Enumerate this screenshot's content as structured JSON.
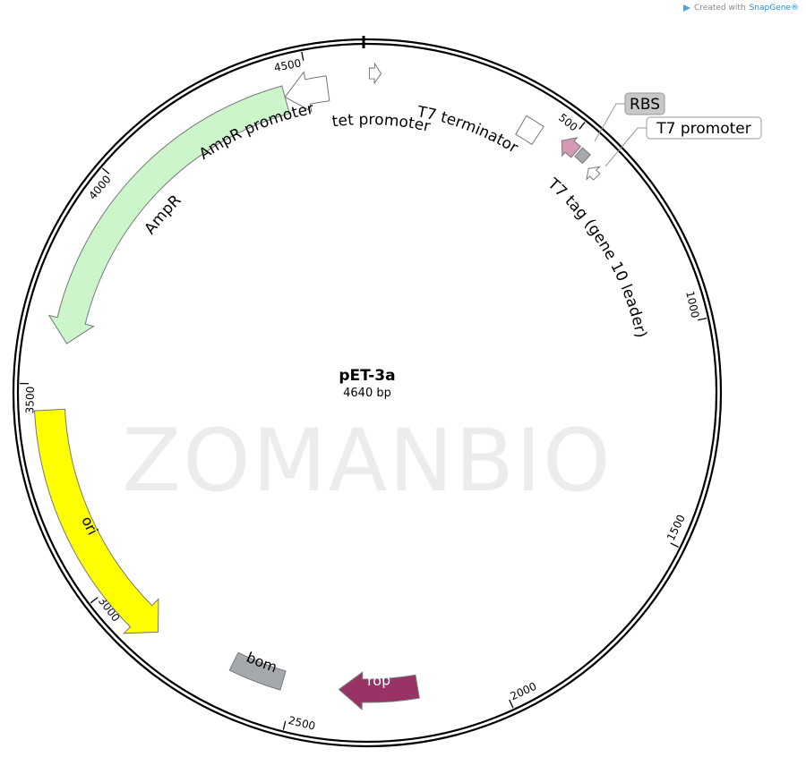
{
  "credit": {
    "prefix": "Created with ",
    "brand": "SnapGene®"
  },
  "watermark": "ZOMANBIO",
  "plasmid": {
    "name": "pET-3a",
    "length_label": "4640 bp",
    "length": 4640
  },
  "ticks": [
    {
      "bp": 500,
      "label": "500"
    },
    {
      "bp": 1000,
      "label": "1000"
    },
    {
      "bp": 1500,
      "label": "1500"
    },
    {
      "bp": 2000,
      "label": "2000"
    },
    {
      "bp": 2500,
      "label": "2500"
    },
    {
      "bp": 3000,
      "label": "3000"
    },
    {
      "bp": 3500,
      "label": "3500"
    },
    {
      "bp": 4000,
      "label": "4000"
    },
    {
      "bp": 4500,
      "label": "4500"
    }
  ],
  "features": [
    {
      "id": "ampr",
      "name": "AmpR",
      "start": 3600,
      "end": 4440,
      "direction": -1,
      "shape": "arrow",
      "color": "#ccf5cc"
    },
    {
      "id": "ampr-promoter",
      "name": "AmpR promoter",
      "start": 4440,
      "end": 4545,
      "direction": -1,
      "shape": "arrow",
      "color": "#ffffff"
    },
    {
      "id": "tet-promoter",
      "name": "tet promoter",
      "start": 5,
      "end": 32,
      "direction": 1,
      "shape": "arrow",
      "color": "#ffffff"
    },
    {
      "id": "t7-terminator",
      "name": "T7 terminator",
      "start": 385,
      "end": 432,
      "direction": 0,
      "shape": "box",
      "color": "#ffffff"
    },
    {
      "id": "t7-tag",
      "name": "T7 tag (gene 10 leader)",
      "start": 485,
      "end": 527,
      "direction": -1,
      "shape": "arrow",
      "color": "#d499b4"
    },
    {
      "id": "rbs",
      "name": "RBS",
      "start": 532,
      "end": 556,
      "direction": 0,
      "shape": "box",
      "color": "#a5a9ad"
    },
    {
      "id": "t7-promoter",
      "name": "T7 promoter",
      "start": 575,
      "end": 602,
      "direction": -1,
      "shape": "arrow",
      "color": "#ffffff"
    },
    {
      "id": "ori",
      "name": "ori",
      "start": 2850,
      "end": 3440,
      "direction": -1,
      "shape": "arrow",
      "color": "#ffff00"
    },
    {
      "id": "bom",
      "name": "bom",
      "start": 2530,
      "end": 2660,
      "direction": 0,
      "shape": "box",
      "color": "#a5a9ad"
    },
    {
      "id": "rop",
      "name": "rop",
      "start": 2195,
      "end": 2390,
      "direction": 1,
      "shape": "arrow",
      "color": "#993366"
    }
  ]
}
